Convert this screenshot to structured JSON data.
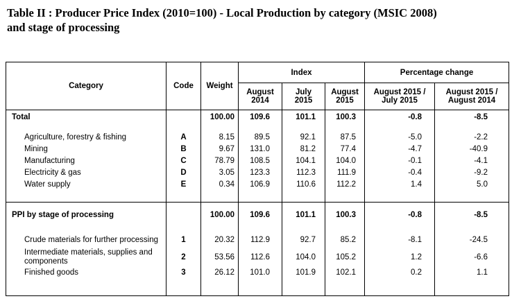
{
  "title": {
    "line1": "Table II : Producer Price Index (2010=100) - Local Production by category (MSIC 2008)",
    "line2": "and stage of processing"
  },
  "headers": {
    "category": "Category",
    "code": "Code",
    "weight": "Weight",
    "index": "Index",
    "pct_change": "Percentage change",
    "aug2014_a": "August",
    "aug2014_b": "2014",
    "jul2015_a": "July",
    "jul2015_b": "2015",
    "aug2015_a": "August",
    "aug2015_b": "2015",
    "pc_mom_a": "August 2015 /",
    "pc_mom_b": "July 2015",
    "pc_yoy_a": "August 2015 /",
    "pc_yoy_b": "August 2014"
  },
  "total": {
    "label": "Total",
    "code": "",
    "weight": "100.00",
    "aug2014": "109.6",
    "jul2015": "101.1",
    "aug2015": "100.3",
    "mom": "-0.8",
    "yoy": "-8.5"
  },
  "categories": [
    {
      "label": "Agriculture, forestry & fishing",
      "code": "A",
      "weight": "8.15",
      "aug2014": "89.5",
      "jul2015": "92.1",
      "aug2015": "87.5",
      "mom": "-5.0",
      "yoy": "-2.2"
    },
    {
      "label": "Mining",
      "code": "B",
      "weight": "9.67",
      "aug2014": "131.0",
      "jul2015": "81.2",
      "aug2015": "77.4",
      "mom": "-4.7",
      "yoy": "-40.9"
    },
    {
      "label": "Manufacturing",
      "code": "C",
      "weight": "78.79",
      "aug2014": "108.5",
      "jul2015": "104.1",
      "aug2015": "104.0",
      "mom": "-0.1",
      "yoy": "-4.1"
    },
    {
      "label": "Electricity & gas",
      "code": "D",
      "weight": "3.05",
      "aug2014": "123.3",
      "jul2015": "112.3",
      "aug2015": "111.9",
      "mom": "-0.4",
      "yoy": "-9.2"
    },
    {
      "label": "Water supply",
      "code": "E",
      "weight": "0.34",
      "aug2014": "106.9",
      "jul2015": "110.6",
      "aug2015": "112.2",
      "mom": "1.4",
      "yoy": "5.0"
    }
  ],
  "ppi_stage": {
    "label": "PPI by stage of processing",
    "code": "",
    "weight": "100.00",
    "aug2014": "109.6",
    "jul2015": "101.1",
    "aug2015": "100.3",
    "mom": "-0.8",
    "yoy": "-8.5"
  },
  "stages": [
    {
      "label": "Crude materials for further processing",
      "code": "1",
      "weight": "20.32",
      "aug2014": "112.9",
      "jul2015": "92.7",
      "aug2015": "85.2",
      "mom": "-8.1",
      "yoy": "-24.5"
    },
    {
      "label": "Intermediate materials, supplies and components",
      "code": "2",
      "weight": "53.56",
      "aug2014": "112.6",
      "jul2015": "104.0",
      "aug2015": "105.2",
      "mom": "1.2",
      "yoy": "-6.6"
    },
    {
      "label": "Finished goods",
      "code": "3",
      "weight": "26.12",
      "aug2014": "101.0",
      "jul2015": "101.9",
      "aug2015": "102.1",
      "mom": "0.2",
      "yoy": "1.1"
    }
  ]
}
